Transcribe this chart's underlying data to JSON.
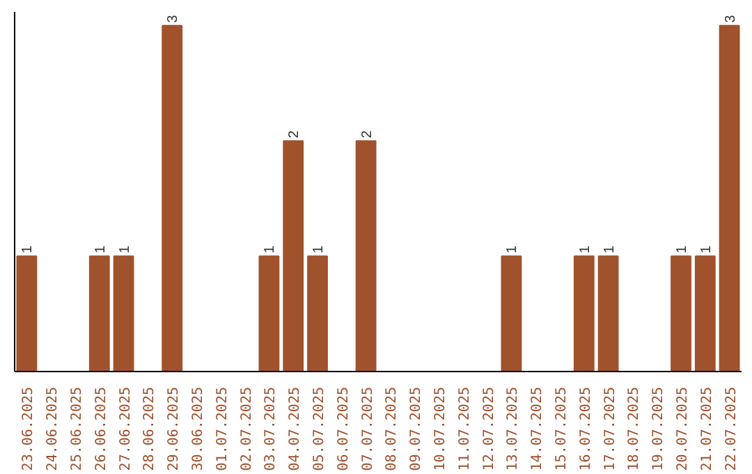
{
  "chart_data": {
    "type": "bar",
    "categories": [
      "23.06.2025",
      "24.06.2025",
      "25.06.2025",
      "26.06.2025",
      "27.06.2025",
      "28.06.2025",
      "29.06.2025",
      "30.06.2025",
      "01.07.2025",
      "02.07.2025",
      "03.07.2025",
      "04.07.2025",
      "05.07.2025",
      "06.07.2025",
      "07.07.2025",
      "08.07.2025",
      "09.07.2025",
      "10.07.2025",
      "11.07.2025",
      "12.07.2025",
      "13.07.2025",
      "14.07.2025",
      "15.07.2025",
      "16.07.2025",
      "17.07.2025",
      "18.07.2025",
      "19.07.2025",
      "20.07.2025",
      "21.07.2025",
      "22.07.2025"
    ],
    "values": [
      1,
      0,
      0,
      1,
      1,
      0,
      3,
      0,
      0,
      0,
      1,
      2,
      1,
      0,
      2,
      0,
      0,
      0,
      0,
      0,
      1,
      0,
      0,
      1,
      1,
      0,
      0,
      1,
      1,
      3
    ],
    "value_labels": [
      "1",
      null,
      null,
      "1",
      "1",
      null,
      "3",
      null,
      null,
      null,
      "1",
      "2",
      "1",
      null,
      "2",
      null,
      null,
      null,
      null,
      null,
      "1",
      null,
      null,
      "1",
      "1",
      null,
      null,
      "1",
      "1",
      "3"
    ],
    "color": "#a0522d",
    "tick_labels": "x",
    "grid": false
  }
}
